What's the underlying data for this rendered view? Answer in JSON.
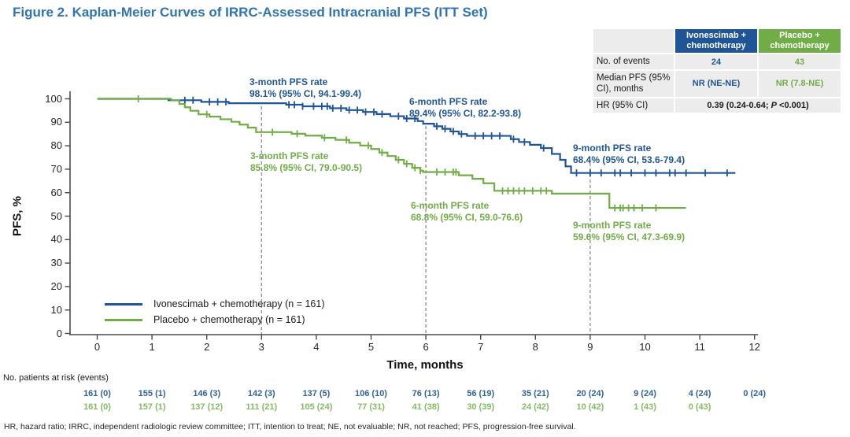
{
  "title": "Figure 2. Kaplan-Meier Curves of IRRC-Assessed Intracranial PFS (ITT Set)",
  "colors": {
    "title_blue": "#2E74B5",
    "ivonescimab": "#1F5597",
    "placebo": "#70AD47",
    "table_dark_cell": "#474B4A",
    "table_body_bg": "#ECECEC",
    "axis": "#4a4a4a",
    "dashed_reference": "#8C8C8C",
    "at_risk_ivo": "#31649B",
    "at_risk_pbo": "#84BC66"
  },
  "summary_table": {
    "col_headers": [
      "Ivonescimab + chemotherapy",
      "Placebo + chemotherapy"
    ],
    "rows": {
      "events": {
        "label": "No. of events",
        "ivo": "24",
        "pbo": "43"
      },
      "median": {
        "label": "Median PFS (95% CI), months",
        "ivo": "NR (NE-NE)",
        "pbo": "NR (7.8-NE)"
      },
      "hr": {
        "label": "HR (95% CI)",
        "value_prefix": "0.39 (0.24-0.64; ",
        "value_italic": "P",
        "value_suffix": " <0.001)"
      }
    }
  },
  "annotations": {
    "ivo_3mo": {
      "line1": "3-month PFS rate",
      "line2": "98.1% (95% CI, 94.1-99.4)"
    },
    "ivo_6mo": {
      "line1": "6-month PFS rate",
      "line2": "89.4% (95% CI, 82.2-93.8)"
    },
    "ivo_9mo": {
      "line1": "9-month PFS rate",
      "line2": "68.4% (95% CI, 53.6-79.4)"
    },
    "pbo_3mo": {
      "line1": "3-month PFS rate",
      "line2": "85.8% (95% CI, 79.0-90.5)"
    },
    "pbo_6mo": {
      "line1": "6-month PFS rate",
      "line2": "68.8% (95% CI, 59.0-76.6)"
    },
    "pbo_9mo": {
      "line1": "9-month PFS rate",
      "line2": "59.6% (95% CI, 47.3-69.9)"
    }
  },
  "at_risk": {
    "label": "No. patients at risk (events)",
    "rows": [
      {
        "series": "ivonescimab",
        "values": [
          "161 (0)",
          "155 (1)",
          "146 (3)",
          "142 (3)",
          "137 (5)",
          "106 (10)",
          "76 (13)",
          "56 (19)",
          "35 (21)",
          "20 (24)",
          "9 (24)",
          "4 (24)",
          "0 (24)"
        ]
      },
      {
        "series": "placebo",
        "values": [
          "161 (0)",
          "157 (1)",
          "137 (12)",
          "111 (21)",
          "105 (24)",
          "77 (31)",
          "41 (38)",
          "30 (39)",
          "24 (42)",
          "10 (42)",
          "1 (43)",
          "0 (43)"
        ]
      }
    ]
  },
  "footnote": "HR, hazard ratio; IRRC, independent radiologic review committee; ITT, intention to treat; NE, not evaluable; NR, not reached; PFS, progression-free survival.",
  "chart_data": {
    "type": "line",
    "subtype": "kaplan-meier-step",
    "title": "Figure 2. Kaplan-Meier Curves of IRRC-Assessed Intracranial PFS (ITT Set)",
    "xlabel": "Time, months",
    "ylabel": "PFS, %",
    "xlim": [
      0,
      12
    ],
    "ylim": [
      0,
      100
    ],
    "x_ticks": [
      0,
      1,
      2,
      3,
      4,
      5,
      6,
      7,
      8,
      9,
      10,
      11,
      12
    ],
    "y_ticks": [
      0,
      10,
      20,
      30,
      40,
      50,
      60,
      70,
      80,
      90,
      100
    ],
    "grid": false,
    "legend_position": "lower-left",
    "reference_lines_months": [
      3,
      6,
      9
    ],
    "milestones": {
      "months": [
        3,
        6,
        9
      ],
      "ivonescimab_pfs_rate_pct": [
        98.1,
        89.4,
        68.4
      ],
      "ivonescimab_95ci": [
        "94.1-99.4",
        "82.2-93.8",
        "53.6-79.4"
      ],
      "placebo_pfs_rate_pct": [
        85.8,
        68.8,
        59.6
      ],
      "placebo_95ci": [
        "79.0-90.5",
        "59.0-76.6",
        "47.3-69.9"
      ],
      "hr": "0.39 (0.24-0.64; P <0.001)",
      "events_ivonescimab": 24,
      "events_placebo": 43,
      "median_ivonescimab": "NR (NE-NE)",
      "median_placebo": "NR (7.8-NE)"
    },
    "series": [
      {
        "name": "Ivonescimab + chemotherapy (n = 161)",
        "n": 161,
        "color": "#1F5597",
        "steps": [
          [
            0,
            100
          ],
          [
            1.3,
            99.4
          ],
          [
            1.9,
            98.7
          ],
          [
            2.4,
            98.1
          ],
          [
            3.45,
            97.5
          ],
          [
            3.75,
            96.8
          ],
          [
            4.25,
            96.0
          ],
          [
            4.55,
            95.2
          ],
          [
            4.85,
            94.4
          ],
          [
            5.1,
            93.5
          ],
          [
            5.35,
            92.6
          ],
          [
            5.6,
            91.6
          ],
          [
            5.85,
            90.5
          ],
          [
            5.95,
            89.4
          ],
          [
            6.15,
            88.3
          ],
          [
            6.3,
            87.2
          ],
          [
            6.45,
            86.1
          ],
          [
            6.6,
            85.0
          ],
          [
            6.75,
            84.2
          ],
          [
            7.55,
            82.8
          ],
          [
            7.7,
            81.6
          ],
          [
            7.9,
            80.4
          ],
          [
            8.1,
            79.0
          ],
          [
            8.3,
            76.5
          ],
          [
            8.45,
            74.0
          ],
          [
            8.55,
            71.2
          ],
          [
            8.65,
            68.4
          ],
          [
            11.65,
            68.4
          ]
        ],
        "censors": [
          1.6,
          1.75,
          2.05,
          2.2,
          2.35,
          3.5,
          3.6,
          3.75,
          3.95,
          4.1,
          4.2,
          4.3,
          4.45,
          4.6,
          4.75,
          4.9,
          5.05,
          5.2,
          5.5,
          5.65,
          5.8,
          6.2,
          6.35,
          6.5,
          6.65,
          6.9,
          7.05,
          7.2,
          7.35,
          7.6,
          7.8,
          8.15,
          8.75,
          9.0,
          9.2,
          9.45,
          9.55,
          9.75,
          10.0,
          10.2,
          10.45,
          10.55,
          10.75,
          11.1,
          11.5
        ]
      },
      {
        "name": "Placebo + chemotherapy (n = 161)",
        "n": 161,
        "color": "#70AD47",
        "steps": [
          [
            0,
            100
          ],
          [
            1.35,
            99.3
          ],
          [
            1.5,
            97.8
          ],
          [
            1.6,
            96.4
          ],
          [
            1.7,
            94.9
          ],
          [
            1.85,
            93.4
          ],
          [
            2.05,
            92.4
          ],
          [
            2.25,
            91.3
          ],
          [
            2.45,
            90.2
          ],
          [
            2.6,
            89.0
          ],
          [
            2.75,
            87.7
          ],
          [
            2.9,
            85.8
          ],
          [
            3.55,
            85.1
          ],
          [
            3.8,
            84.3
          ],
          [
            4.1,
            83.4
          ],
          [
            4.35,
            82.5
          ],
          [
            4.6,
            81.3
          ],
          [
            4.8,
            80.1
          ],
          [
            5.0,
            78.6
          ],
          [
            5.15,
            77.1
          ],
          [
            5.3,
            75.6
          ],
          [
            5.45,
            74.0
          ],
          [
            5.6,
            72.3
          ],
          [
            5.75,
            70.6
          ],
          [
            5.9,
            69.4
          ],
          [
            5.95,
            68.8
          ],
          [
            6.6,
            67.4
          ],
          [
            6.85,
            65.9
          ],
          [
            7.05,
            64.0
          ],
          [
            7.25,
            60.8
          ],
          [
            8.3,
            59.6
          ],
          [
            9.35,
            53.5
          ],
          [
            10.75,
            53.5
          ]
        ],
        "censors": [
          0.75,
          2.0,
          3.2,
          3.65,
          4.15,
          4.55,
          4.95,
          5.2,
          5.5,
          5.65,
          5.8,
          5.9,
          6.2,
          6.35,
          6.5,
          6.55,
          7.4,
          7.5,
          7.6,
          7.7,
          7.8,
          7.95,
          8.1,
          8.2,
          9.45,
          9.55,
          9.6,
          9.7,
          9.8,
          9.95,
          10.2
        ]
      }
    ]
  }
}
